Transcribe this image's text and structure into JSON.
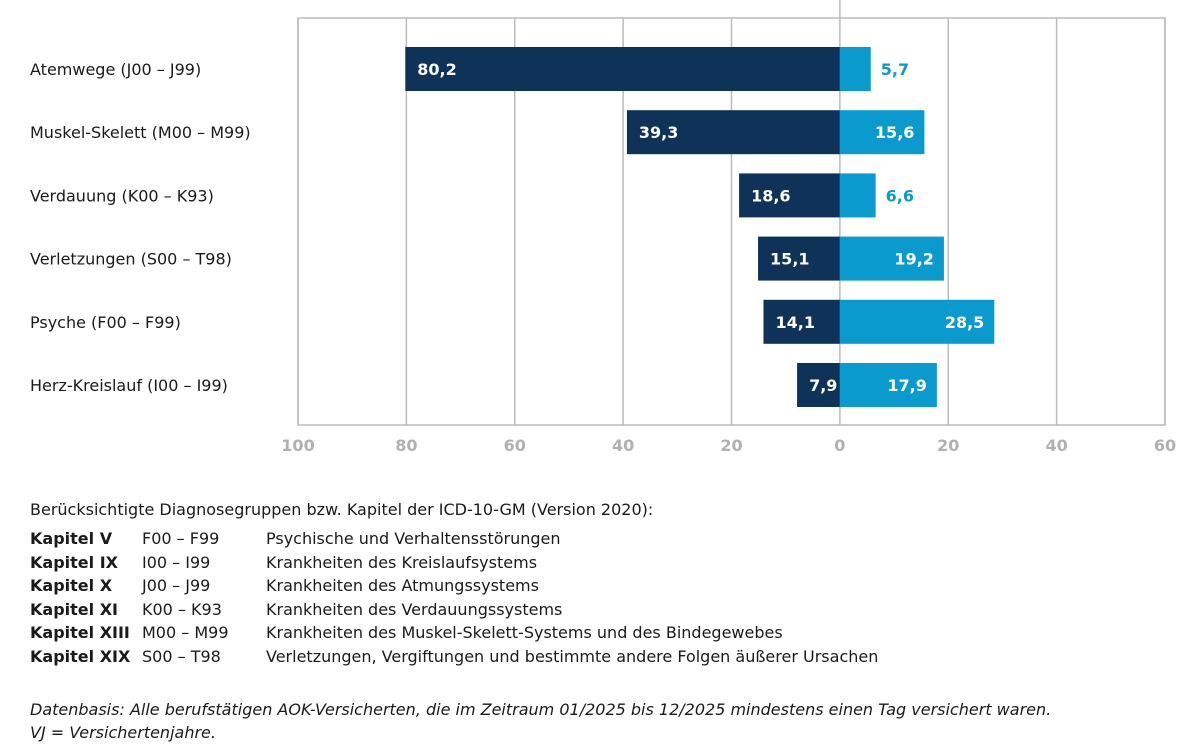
{
  "chart_data": {
    "type": "bar",
    "orientation": "horizontal-diverging",
    "categories": [
      "Atemwege (J00 – J99)",
      "Muskel-Skelett (M00 – M99)",
      "Verdauung (K00 – K93)",
      "Verletzungen (S00 – T98)",
      "Psyche (F00 – F99)",
      "Herz-Kreislauf (I00 – I99)"
    ],
    "series": [
      {
        "values": [
          80.2,
          39.3,
          18.6,
          15.1,
          14.1,
          7.9
        ],
        "labels": [
          "80,2",
          "39,3",
          "18,6",
          "15,1",
          "14,1",
          "7,9"
        ],
        "color": "#0f3259",
        "direction": "left"
      },
      {
        "values": [
          5.7,
          15.6,
          6.6,
          19.2,
          28.5,
          17.9
        ],
        "labels": [
          "5,7",
          "15,6",
          "6,6",
          "19,2",
          "28,5",
          "17,9"
        ],
        "color": "#0a9acd",
        "direction": "right"
      }
    ],
    "xlim": [
      -100,
      60
    ],
    "ticks": [
      "100",
      "80",
      "60",
      "40",
      "20",
      "0",
      "20",
      "40",
      "60"
    ],
    "tick_values": [
      -100,
      -80,
      -60,
      -40,
      -20,
      0,
      20,
      40,
      60
    ],
    "grid": true
  },
  "legend": {
    "intro": "Berücksichtigte Diagnosegruppen bzw. Kapitel der ICD-10-GM (Version 2020):",
    "rows": [
      {
        "k": "Kapitel V",
        "c": "F00 – F99",
        "d": "Psychische und Verhaltensstörungen"
      },
      {
        "k": "Kapitel IX",
        "c": "I00 – I99",
        "d": "Krankheiten des Kreislaufsystems"
      },
      {
        "k": "Kapitel X",
        "c": "J00 – J99",
        "d": "Krankheiten des Atmungssystems"
      },
      {
        "k": "Kapitel XI",
        "c": "K00 – K93",
        "d": "Krankheiten des Verdauungssystems"
      },
      {
        "k": "Kapitel XIII",
        "c": "M00 – M99",
        "d": "Krankheiten des Muskel-Skelett-Systems und des Bindegewebes"
      },
      {
        "k": "Kapitel XIX",
        "c": "S00 – T98",
        "d": "Verletzungen, Vergiftungen und bestimmte andere Folgen äußerer Ursachen"
      }
    ]
  },
  "note": {
    "line1": "Datenbasis: Alle berufstätigen AOK-Versicherten, die im Zeitraum 01/2025 bis 12/2025 mindestens einen Tag versichert waren.",
    "line2": "VJ = Versichertenjahre."
  }
}
